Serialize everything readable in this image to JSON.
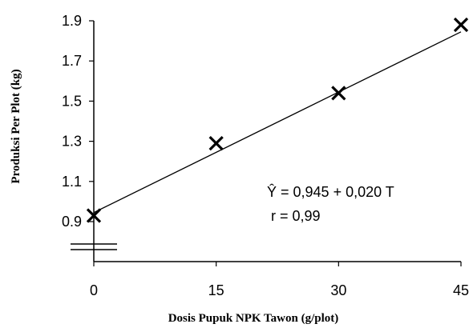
{
  "chart_data": {
    "type": "scatter",
    "title": "",
    "xlabel": "Dosis Pupuk NPK Tawon (g/plot)",
    "ylabel": "Produksi Per Plot (kg)",
    "x_ticks": [
      "0",
      "15",
      "30",
      "45"
    ],
    "y_ticks": [
      "0.9",
      "1.1",
      "1.3",
      "1.5",
      "1.7",
      "1.9"
    ],
    "xlim": [
      0,
      45
    ],
    "ylim": [
      0.75,
      1.9
    ],
    "y_axis_break": true,
    "grid": false,
    "marker": "x",
    "series": [
      {
        "x": [
          0,
          15,
          30,
          45
        ],
        "y": [
          0.93,
          1.29,
          1.54,
          1.88
        ]
      }
    ],
    "trendline": {
      "intercept": 0.945,
      "slope": 0.02,
      "equation": "Ŷ = 0,945  + 0,020 T",
      "r_label": "r = 0,99"
    }
  }
}
